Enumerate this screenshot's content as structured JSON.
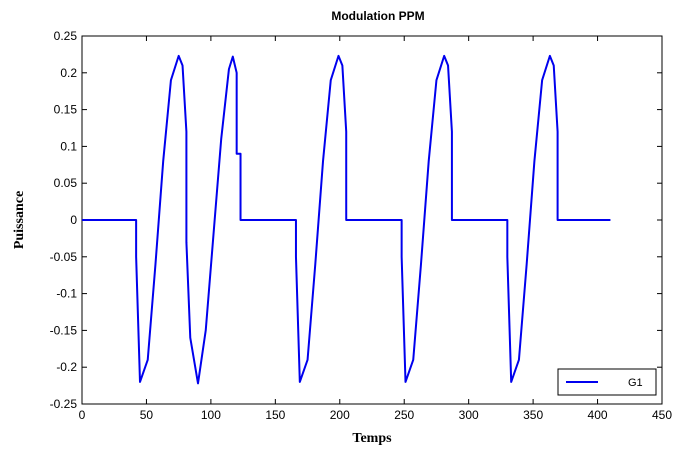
{
  "chart_data": {
    "type": "line",
    "title": "Modulation PPM",
    "xlabel": "Temps",
    "ylabel": "Puissance",
    "xlim": [
      0,
      450
    ],
    "ylim": [
      -0.25,
      0.25
    ],
    "xticks": [
      0,
      50,
      100,
      150,
      200,
      250,
      300,
      350,
      400,
      450
    ],
    "xtick_labels": [
      "0",
      "50",
      "100",
      "150",
      "200",
      "250",
      "300",
      "350",
      "400",
      "450"
    ],
    "yticks": [
      -0.25,
      -0.2,
      -0.15,
      -0.1,
      -0.05,
      0,
      0.05,
      0.1,
      0.15,
      0.2,
      0.25
    ],
    "ytick_labels": [
      "-0.25",
      "-0.2",
      "-0.15",
      "-0.1",
      "-0.05",
      "0",
      "0.05",
      "0.1",
      "0.15",
      "0.2",
      "0.25"
    ],
    "grid": false,
    "legend_position": "bottom-right",
    "series": [
      {
        "name": "G1",
        "color": "#0000ee",
        "x": [
          0,
          42,
          42,
          45,
          51,
          57,
          63,
          69,
          75,
          78,
          81,
          81,
          84,
          90,
          96,
          102,
          108,
          114,
          117,
          120,
          120,
          123,
          123,
          166,
          166,
          169,
          175,
          181,
          187,
          193,
          199,
          202,
          205,
          205,
          248,
          248,
          251,
          257,
          263,
          269,
          275,
          281,
          284,
          287,
          287,
          330,
          330,
          333,
          339,
          345,
          351,
          357,
          363,
          366,
          369,
          369,
          410
        ],
        "y": [
          0,
          0,
          -0.05,
          -0.22,
          -0.19,
          -0.06,
          0.08,
          0.19,
          0.223,
          0.21,
          0.12,
          -0.03,
          -0.16,
          -0.222,
          -0.15,
          -0.02,
          0.11,
          0.205,
          0.222,
          0.2,
          0.09,
          0.09,
          0,
          0,
          -0.05,
          -0.22,
          -0.19,
          -0.06,
          0.08,
          0.19,
          0.223,
          0.21,
          0.12,
          0,
          0,
          -0.05,
          -0.22,
          -0.19,
          -0.06,
          0.08,
          0.19,
          0.223,
          0.21,
          0.12,
          0,
          0,
          -0.05,
          -0.22,
          -0.19,
          -0.06,
          0.08,
          0.19,
          0.223,
          0.21,
          0.12,
          0,
          0
        ]
      }
    ]
  }
}
